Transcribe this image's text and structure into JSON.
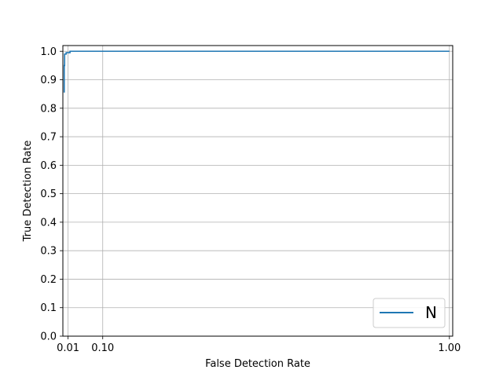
{
  "chart_data": {
    "type": "line",
    "title": "",
    "xlabel": "False Detection Rate",
    "ylabel": "True Detection Rate",
    "xlim": [
      -0.0035,
      1.0085
    ],
    "ylim": [
      0.0,
      1.02
    ],
    "x_ticks": [
      0.01,
      0.1,
      1.0
    ],
    "x_tick_labels": [
      "0.01",
      "0.10",
      "1.00"
    ],
    "y_ticks": [
      0.0,
      0.1,
      0.2,
      0.3,
      0.4,
      0.5,
      0.6,
      0.7,
      0.8,
      0.9,
      1.0
    ],
    "y_tick_labels": [
      "0.0",
      "0.1",
      "0.2",
      "0.3",
      "0.4",
      "0.5",
      "0.6",
      "0.7",
      "0.8",
      "0.9",
      "1.0"
    ],
    "grid": true,
    "legend_position": "bottom-right",
    "series": [
      {
        "name": "N",
        "color": "#1f77b4",
        "x": [
          0.0,
          0.0,
          0.001,
          0.001,
          0.005,
          0.005,
          0.015,
          0.015,
          1.0
        ],
        "y": [
          0.855,
          0.95,
          0.95,
          0.99,
          0.99,
          0.995,
          0.995,
          1.0,
          1.0
        ]
      }
    ]
  }
}
